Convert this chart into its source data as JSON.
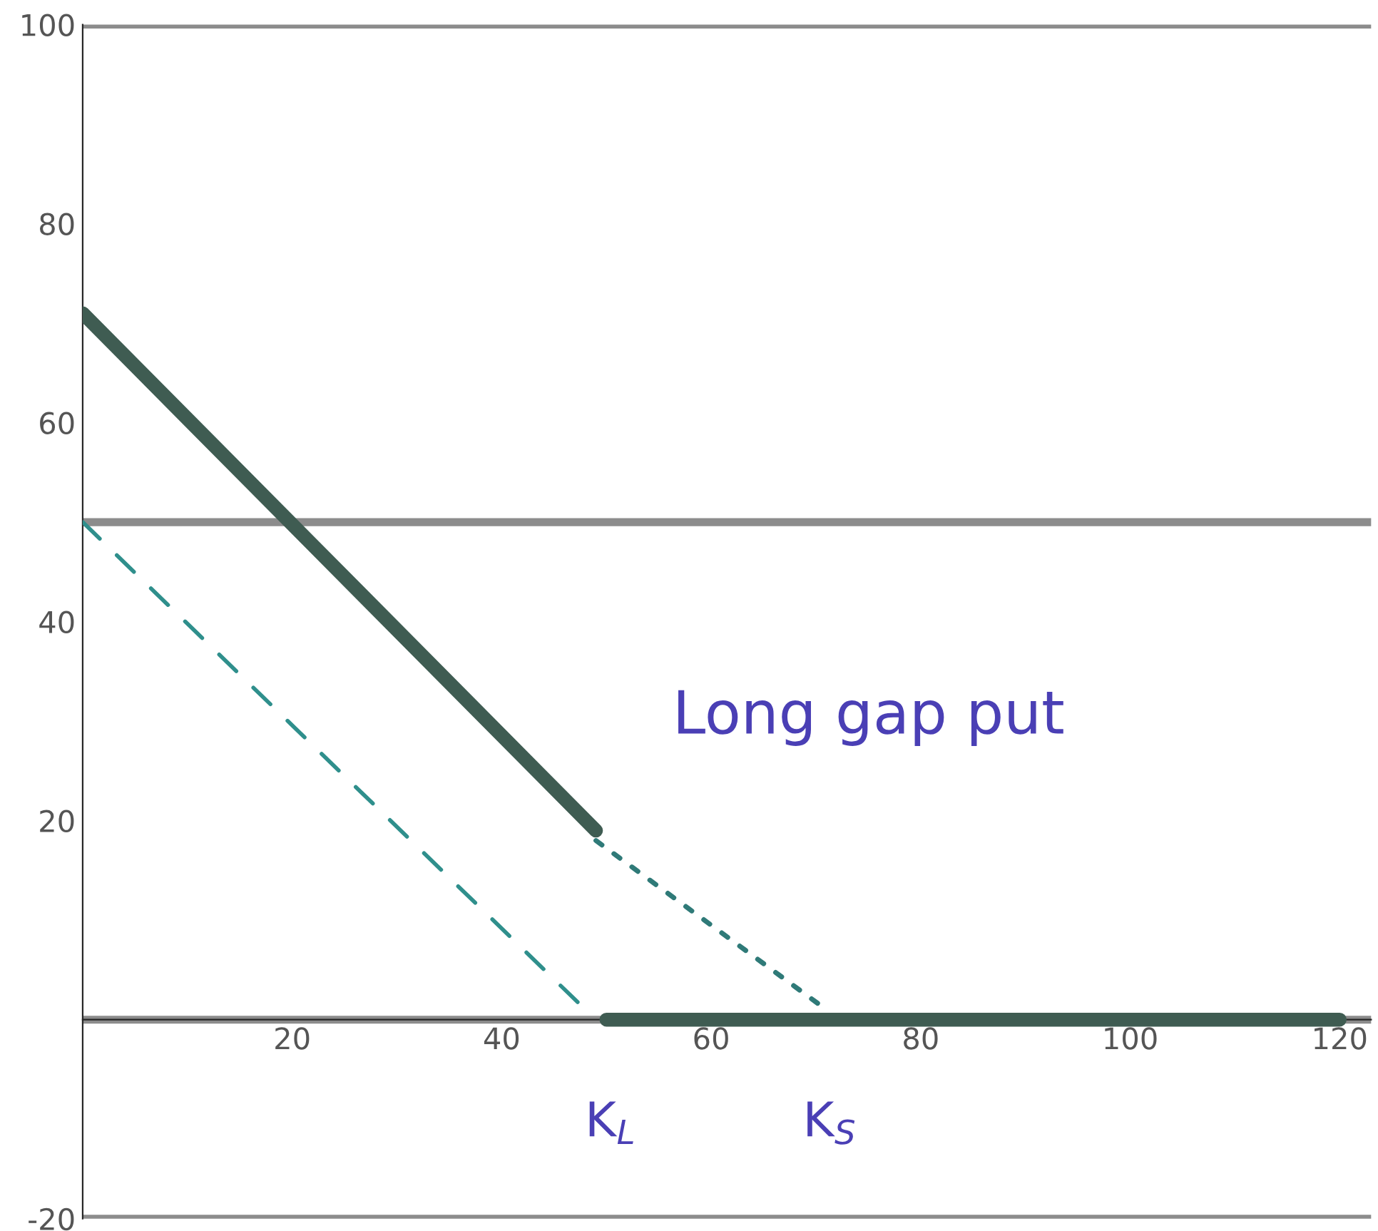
{
  "chart_data": {
    "type": "line",
    "xlim": [
      0,
      123
    ],
    "ylim": [
      -20,
      100
    ],
    "xticks": [
      20,
      40,
      60,
      80,
      100,
      120
    ],
    "yticks": [
      -20,
      20,
      40,
      60,
      80,
      100
    ],
    "grid": false,
    "legend": false,
    "marker": "none",
    "series": [
      {
        "x": [
          0,
          49,
          49.5,
          50,
          120
        ],
        "values": [
          71,
          19,
          null,
          0,
          0
        ],
        "color": "#3f5c52",
        "line_style": "solid"
      },
      {
        "x": [
          49,
          71
        ],
        "values": [
          18,
          1
        ],
        "color": "#2f7a78",
        "line_style": "dotted"
      },
      {
        "x": [
          0,
          48
        ],
        "values": [
          50,
          1
        ],
        "color": "#2f8f8c",
        "line_style": "dashed"
      }
    ],
    "ref_lines": [
      {
        "axis": "y",
        "value": 100,
        "color": "#8c8c8c"
      },
      {
        "axis": "y",
        "value": 50,
        "color": "#8c8c8c"
      },
      {
        "axis": "y",
        "value": 0,
        "color": "#8c8c8c"
      },
      {
        "axis": "y",
        "value": -20,
        "color": "#8c8c8c"
      }
    ],
    "annotations": [
      "Long gap put",
      "K$_{L}$",
      "K$_{S}$"
    ]
  }
}
